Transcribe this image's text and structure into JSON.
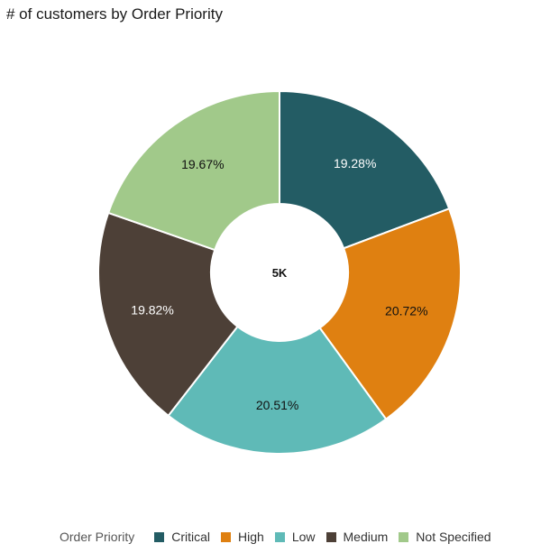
{
  "chart_data": {
    "type": "pie",
    "title": "# of customers by Order Priority",
    "center_label": "5K",
    "legend_title": "Order Priority",
    "legend_placement": "bottom",
    "slices": [
      {
        "name": "Critical",
        "percent": 19.28,
        "label": "19.28%",
        "color": "#235c64",
        "label_color": "#ffffff"
      },
      {
        "name": "High",
        "percent": 20.72,
        "label": "20.72%",
        "color": "#df8011",
        "label_color": "#111111"
      },
      {
        "name": "Low",
        "percent": 20.51,
        "label": "20.51%",
        "color": "#5fbab7",
        "label_color": "#111111"
      },
      {
        "name": "Medium",
        "percent": 19.82,
        "label": "19.82%",
        "color": "#4d4037",
        "label_color": "#ffffff"
      },
      {
        "name": "Not Specified",
        "percent": 19.67,
        "label": "19.67%",
        "color": "#a1c98a",
        "label_color": "#111111"
      }
    ]
  }
}
